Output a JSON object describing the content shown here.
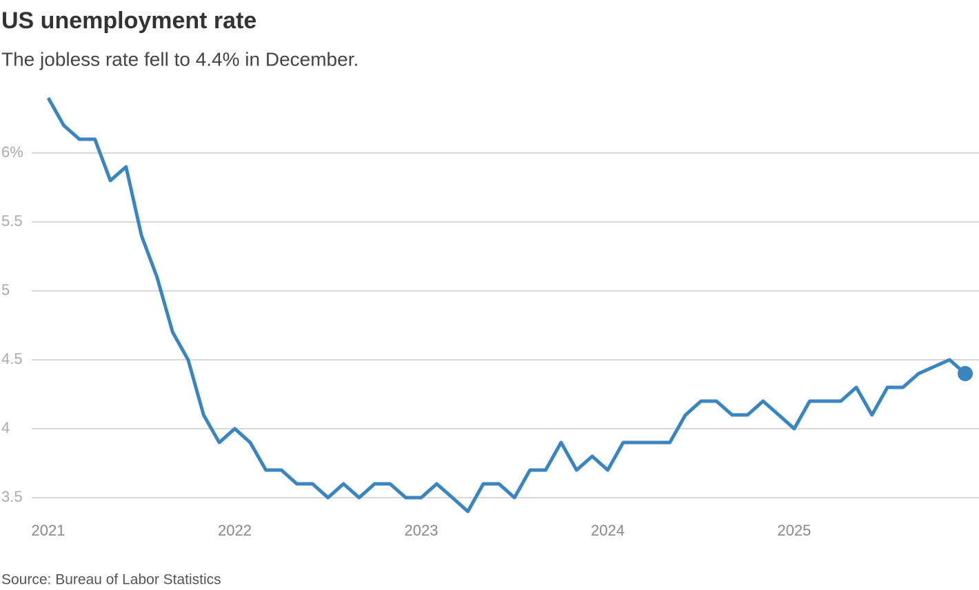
{
  "chart_data": {
    "type": "line",
    "title": "US unemployment rate",
    "subtitle": "The jobless rate fell to 4.4% in December.",
    "source": "Source: Bureau of Labor Statistics",
    "x": [
      2021,
      2021.083,
      2021.167,
      2021.25,
      2021.333,
      2021.417,
      2021.5,
      2021.583,
      2021.667,
      2021.75,
      2021.833,
      2021.917,
      2022,
      2022.083,
      2022.167,
      2022.25,
      2022.333,
      2022.417,
      2022.5,
      2022.583,
      2022.667,
      2022.75,
      2022.833,
      2022.917,
      2023,
      2023.083,
      2023.167,
      2023.25,
      2023.333,
      2023.417,
      2023.5,
      2023.583,
      2023.667,
      2023.75,
      2023.833,
      2023.917,
      2024,
      2024.083,
      2024.167,
      2024.25,
      2024.333,
      2024.417,
      2024.5,
      2024.583,
      2024.667,
      2024.75,
      2024.833,
      2024.917,
      2025,
      2025.083,
      2025.167,
      2025.25,
      2025.333,
      2025.417,
      2025.5,
      2025.583,
      2025.667,
      2025.833,
      2025.917
    ],
    "values": [
      6.4,
      6.2,
      6.1,
      6.1,
      5.8,
      5.9,
      5.4,
      5.1,
      4.7,
      4.5,
      4.1,
      3.9,
      4.0,
      3.9,
      3.7,
      3.7,
      3.6,
      3.6,
      3.5,
      3.6,
      3.5,
      3.6,
      3.6,
      3.5,
      3.5,
      3.6,
      3.5,
      3.4,
      3.6,
      3.6,
      3.5,
      3.7,
      3.7,
      3.9,
      3.7,
      3.8,
      3.7,
      3.9,
      3.9,
      3.9,
      3.9,
      4.1,
      4.2,
      4.2,
      4.1,
      4.1,
      4.2,
      4.1,
      4.0,
      4.2,
      4.2,
      4.2,
      4.3,
      4.1,
      4.3,
      4.3,
      4.4,
      4.5,
      4.4
    ],
    "color": "#3a85c0",
    "xlim": [
      2021,
      2025.917
    ],
    "xticks": [
      2021,
      2022,
      2023,
      2024,
      2025
    ],
    "ylim": [
      3.4,
      6.4
    ],
    "yticks": [
      3.5,
      4,
      4.5,
      5,
      5.5,
      {
        "value": 6,
        "label": "6%"
      }
    ],
    "grid": true
  }
}
